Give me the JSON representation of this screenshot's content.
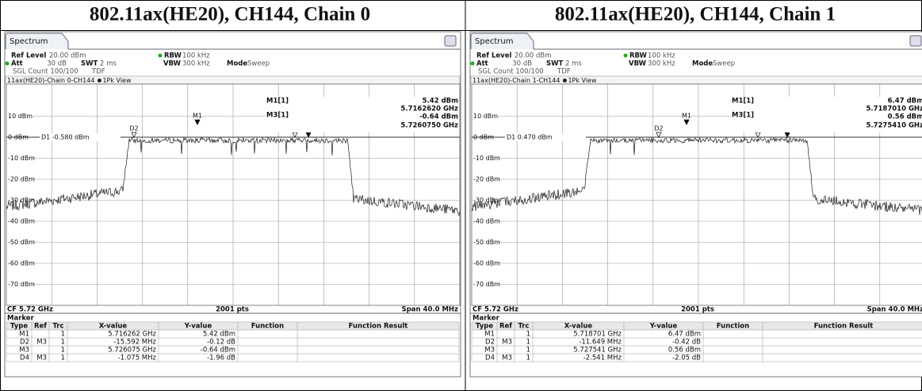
{
  "panels": [
    {
      "heading": "802.11ax(HE20), CH144, Chain 0",
      "spectrum": {
        "tab": "Spectrum",
        "ref_level_label": "Ref Level",
        "ref_level": "20.00 dBm",
        "rbw_label": "RBW",
        "rbw": "100 kHz",
        "att_label": "Att",
        "att": "30 dB",
        "swt_label": "SWT",
        "swt": "2 ms",
        "vbw_label": "VBW",
        "vbw": "300 kHz",
        "mode_label": "Mode",
        "mode": "Sweep",
        "sgl_count": "SGL Count 100/100",
        "tdf": "TDF",
        "trace_title": "11ax(HE20)-Chain 0-CH144",
        "view": "1Pk View",
        "m1_label": "M1[1]",
        "m1_level": "5.42 dBm",
        "m1_freq": "5.7162620 GHz",
        "m3_label": "M3[1]",
        "m3_level": "-0.64 dBm",
        "m3_freq": "5.7260750 GHz",
        "d1_line": "D1 -0.580 dBm",
        "y_labels": [
          "10 dBm",
          "0 dBm",
          "-10 dBm",
          "-20 dBm",
          "-30 dBm",
          "-40 dBm",
          "-50 dBm",
          "-60 dBm",
          "-70 dBm"
        ],
        "markers": [
          {
            "label": "M1"
          },
          {
            "label": "D2"
          },
          {
            "label": "M3"
          },
          {
            "label": "D4"
          }
        ],
        "cf": "CF 5.72 GHz",
        "pts": "2001 pts",
        "span": "Span 40.0 MHz"
      },
      "marker_table": {
        "title": "Marker",
        "headers": [
          "Type",
          "Ref",
          "Trc",
          "X-value",
          "Y-value",
          "Function",
          "Function Result"
        ],
        "rows": [
          {
            "type": "M1",
            "trc": "1",
            "x_value": "5.716262 GHz",
            "y_value": "5.42 dBm"
          },
          {
            "type": "D2",
            "ref": "M3",
            "trc": "1",
            "x_value": "-15.592 MHz",
            "y_value": "-0.12 dB"
          },
          {
            "type": "M3",
            "trc": "1",
            "x_value": "5.726075 GHz",
            "y_value": "-0.64 dBm"
          },
          {
            "type": "D4",
            "ref": "M3",
            "trc": "1",
            "x_value": "-1.075 MHz",
            "y_value": "-1.96 dB"
          }
        ]
      }
    },
    {
      "heading": "802.11ax(HE20), CH144, Chain 1",
      "spectrum": {
        "tab": "Spectrum",
        "ref_level_label": "Ref Level",
        "ref_level": "20.00 dBm",
        "rbw_label": "RBW",
        "rbw": "100 kHz",
        "att_label": "Att",
        "att": "30 dB",
        "swt_label": "SWT",
        "swt": "2 ms",
        "vbw_label": "VBW",
        "vbw": "300 kHz",
        "mode_label": "Mode",
        "mode": "Sweep",
        "sgl_count": "SGL Count 100/100",
        "tdf": "TDF",
        "trace_title": "11ax(HE20)-Chain 1-CH144",
        "view": "1Pk View",
        "m1_label": "M1[1]",
        "m1_level": "6.47 dBm",
        "m1_freq": "5.7187010 GHz",
        "m3_label": "M3[1]",
        "m3_level": "0.56 dBm",
        "m3_freq": "5.7275410 GHz",
        "d1_line": "D1 0.470 dBm",
        "y_labels": [
          "10 dBm",
          "0 dBm",
          "-10 dBm",
          "-20 dBm",
          "-30 dBm",
          "-40 dBm",
          "-50 dBm",
          "-60 dBm",
          "-70 dBm"
        ],
        "markers": [
          {
            "label": "M1"
          },
          {
            "label": "D2"
          },
          {
            "label": "M3"
          },
          {
            "label": "D4"
          }
        ],
        "cf": "CF 5.72 GHz",
        "pts": "2001 pts",
        "span": "Span 40.0 MHz"
      },
      "marker_table": {
        "title": "Marker",
        "headers": [
          "Type",
          "Ref",
          "Trc",
          "X-value",
          "Y-value",
          "Function",
          "Function Result"
        ],
        "rows": [
          {
            "type": "M1",
            "trc": "1",
            "x_value": "5.718701 GHz",
            "y_value": "6.47 dBm"
          },
          {
            "type": "D2",
            "ref": "M3",
            "trc": "1",
            "x_value": "-11.649 MHz",
            "y_value": "-0.42 dB"
          },
          {
            "type": "M3",
            "trc": "1",
            "x_value": "5.727541 GHz",
            "y_value": "0.56 dBm"
          },
          {
            "type": "D4",
            "ref": "M3",
            "trc": "1",
            "x_value": "-2.541 MHz",
            "y_value": "-2.05 dB"
          }
        ]
      }
    }
  ]
}
